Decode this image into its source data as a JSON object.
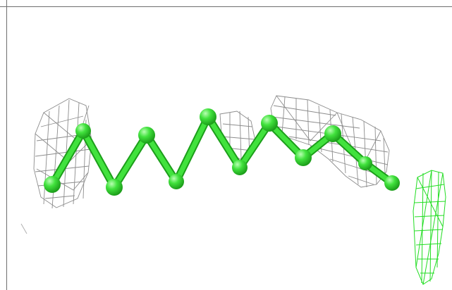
{
  "scene": {
    "type": "molecular-structure-view",
    "background": "#ffffff",
    "frame_color": "#6e6e6e",
    "ligand": {
      "representation": "ball-and-stick",
      "color": "#41e23d",
      "highlight": "#b9ffb3",
      "shadow": "#1c9e1a",
      "atom_count": 12
    },
    "density_maps": [
      {
        "name": "2fo-fc-map",
        "color": "#8c8c8c",
        "style": "mesh"
      },
      {
        "name": "fo-fc-map",
        "color": "#22dd22",
        "style": "mesh"
      }
    ]
  }
}
